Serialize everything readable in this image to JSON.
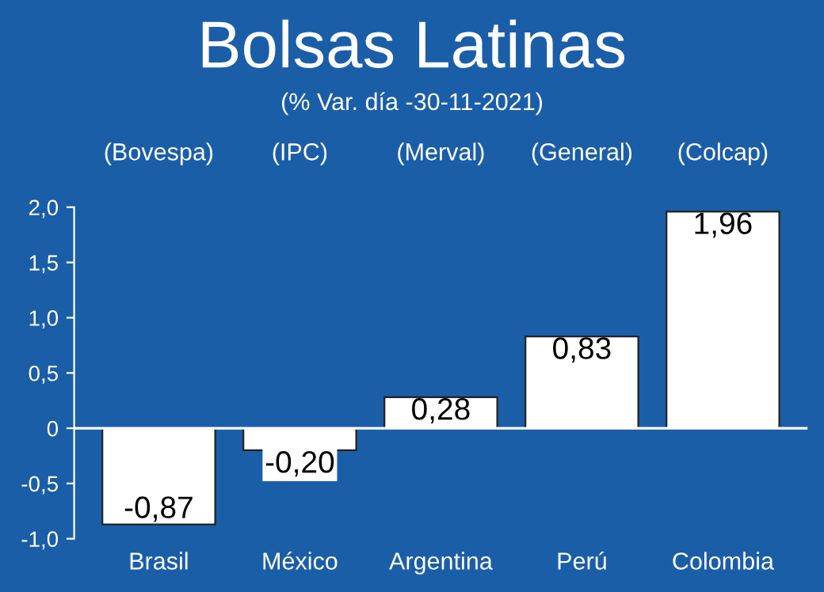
{
  "chart_data": {
    "type": "bar",
    "title": "Bolsas Latinas",
    "subtitle": "(% Var. día -30-11-2021)",
    "categories": [
      "Brasil",
      "México",
      "Argentina",
      "Perú",
      "Colombia"
    ],
    "annotations": [
      "(Bovespa)",
      "(IPC)",
      "(Merval)",
      "(General)",
      "(Colcap)"
    ],
    "values": [
      -0.87,
      -0.2,
      0.28,
      0.83,
      1.96
    ],
    "color": "#ffffff",
    "value_labels": [
      "-0,87",
      "-0,20",
      "0,28",
      "0,83",
      "1,96"
    ],
    "ylim": [
      -1.0,
      2.0
    ],
    "yticks": [
      {
        "value": -1.0,
        "label": "-1,0"
      },
      {
        "value": -0.5,
        "label": "-0,5"
      },
      {
        "value": 0,
        "label": "0"
      },
      {
        "value": 0.5,
        "label": "0,5"
      },
      {
        "value": 1.0,
        "label": "1,0"
      },
      {
        "value": 1.5,
        "label": "1,5"
      },
      {
        "value": 2.0,
        "label": "2,0"
      }
    ],
    "ref_lines": [
      {
        "axis": "y",
        "value": 0,
        "color": "#ffffff"
      }
    ],
    "grid": false,
    "legend": false
  }
}
